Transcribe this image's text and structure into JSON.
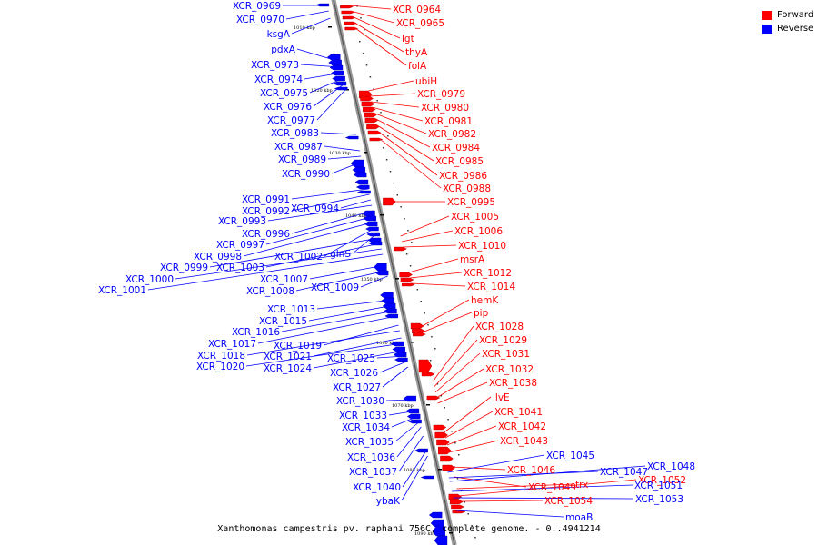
{
  "caption": "Xanthomonas campestris pv. raphani 756C, complete genome. - 0..4941214",
  "legend": [
    {
      "label": "Forward",
      "color": "#ff0000"
    },
    {
      "label": "Reverse",
      "color": "#0000ff"
    }
  ],
  "ticks": [
    "1010 kbp",
    "1020 kbp",
    "1030 kbp",
    "1040 kbp",
    "1050 kbp",
    "1060 kbp",
    "1070 kbp",
    "1080 kbp",
    "1090 kbp"
  ],
  "forward_genes": [
    "XCR_0964",
    "XCR_0965",
    "lgt",
    "thyA",
    "folA",
    "ubiH",
    "XCR_0979",
    "XCR_0980",
    "XCR_0981",
    "XCR_0982",
    "XCR_0984",
    "XCR_0985",
    "XCR_0986",
    "XCR_0988",
    "XCR_0995",
    "XCR_1005",
    "XCR_1006",
    "XCR_1010",
    "msrA",
    "XCR_1012",
    "XCR_1014",
    "hemK",
    "pip",
    "XCR_1028",
    "XCR_1029",
    "XCR_1031",
    "XCR_1032",
    "XCR_1038",
    "ilvE",
    "XCR_1041",
    "XCR_1042",
    "XCR_1043",
    "XCR_1046",
    "XCR_1049",
    "trx",
    "XCR_1052",
    "XCR_1054"
  ],
  "reverse_genes": [
    "XCR_0969",
    "XCR_0970",
    "ksgA",
    "pdxA",
    "XCR_0973",
    "XCR_0974",
    "XCR_0975",
    "XCR_0976",
    "XCR_0977",
    "XCR_0983",
    "XCR_0987",
    "XCR_0989",
    "XCR_0990",
    "XCR_0991",
    "XCR_0992",
    "XCR_0994",
    "XCR_0993",
    "XCR_0996",
    "XCR_0997",
    "XCR_0998",
    "XCR_1002",
    "glnS",
    "XCR_0999",
    "XCR_1003",
    "XCR_1000",
    "XCR_1001",
    "XCR_1007",
    "XCR_1008",
    "XCR_1009",
    "XCR_1013",
    "XCR_1015",
    "XCR_1016",
    "XCR_1017",
    "XCR_1019",
    "XCR_1018",
    "XCR_1021",
    "XCR_1020",
    "XCR_1024",
    "XCR_1025",
    "XCR_1026",
    "XCR_1027",
    "XCR_1030",
    "XCR_1033",
    "XCR_1034",
    "XCR_1035",
    "XCR_1036",
    "XCR_1037",
    "XCR_1040",
    "ybaK",
    "XCR_1045",
    "XCR_1047",
    "XCR_1048",
    "XCR_1051",
    "XCR_1053",
    "moaB"
  ]
}
